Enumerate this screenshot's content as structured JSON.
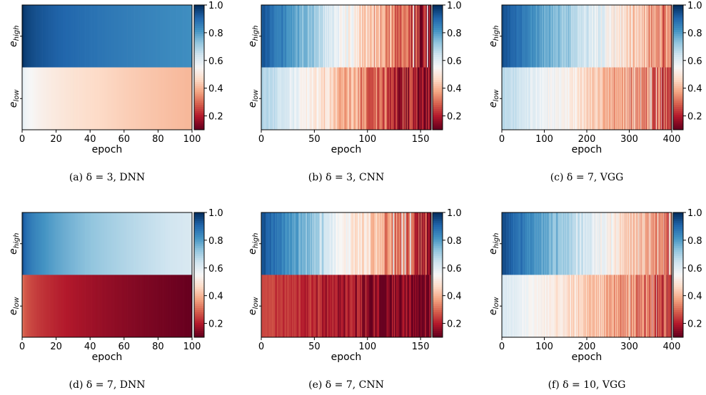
{
  "colorbar": {
    "min": 0.1,
    "max": 1.0,
    "ticks": [
      0.2,
      0.4,
      0.6,
      0.8,
      1.0
    ],
    "colormap": "RdBu"
  },
  "chart_data": [
    {
      "type": "heatmap",
      "caption": "(a) δ = 3, DNN",
      "xlabel": "epoch",
      "rows": [
        "e_high",
        "e_low"
      ],
      "xlim": [
        0,
        100
      ],
      "xticks": [
        0,
        20,
        40,
        60,
        80,
        100
      ],
      "epochs": 100,
      "profile": {
        "high": {
          "start": 1.0,
          "end": 0.83,
          "mode": "smooth"
        },
        "low": {
          "start": 0.6,
          "end": 0.4,
          "mode": "smooth"
        }
      }
    },
    {
      "type": "heatmap",
      "caption": "(b) δ = 3, CNN",
      "xlabel": "epoch",
      "rows": [
        "e_high",
        "e_low"
      ],
      "xlim": [
        0,
        160
      ],
      "xticks": [
        0,
        50,
        100,
        150
      ],
      "epochs": 160,
      "profile": {
        "high": {
          "start": 0.95,
          "end": 0.15,
          "mode": "noisy"
        },
        "low": {
          "start": 0.7,
          "end": 0.1,
          "mode": "noisy"
        }
      }
    },
    {
      "type": "heatmap",
      "caption": "(c) δ = 7, VGG",
      "xlabel": "epoch",
      "rows": [
        "e_high",
        "e_low"
      ],
      "xlim": [
        0,
        400
      ],
      "xticks": [
        0,
        100,
        200,
        300,
        400
      ],
      "epochs": 400,
      "profile": {
        "high": {
          "start": 0.95,
          "end": 0.3,
          "mode": "noisy"
        },
        "low": {
          "start": 0.68,
          "end": 0.25,
          "mode": "noisy"
        }
      }
    },
    {
      "type": "heatmap",
      "caption": "(d) δ = 7, DNN",
      "xlabel": "epoch",
      "rows": [
        "e_high",
        "e_low"
      ],
      "xlim": [
        0,
        100
      ],
      "xticks": [
        0,
        20,
        40,
        60,
        80,
        100
      ],
      "epochs": 100,
      "profile": {
        "high": {
          "start": 0.95,
          "end": 0.62,
          "mode": "smooth"
        },
        "low": {
          "start": 0.3,
          "end": 0.1,
          "mode": "smooth"
        }
      }
    },
    {
      "type": "heatmap",
      "caption": "(e) δ = 7, CNN",
      "xlabel": "epoch",
      "rows": [
        "e_high",
        "e_low"
      ],
      "xlim": [
        0,
        160
      ],
      "xticks": [
        0,
        50,
        100,
        150
      ],
      "epochs": 160,
      "profile": {
        "high": {
          "start": 0.95,
          "end": 0.15,
          "mode": "noisy"
        },
        "low": {
          "start": 0.25,
          "end": 0.1,
          "mode": "noisy"
        }
      }
    },
    {
      "type": "heatmap",
      "caption": "(f) δ = 10, VGG",
      "xlabel": "epoch",
      "rows": [
        "e_high",
        "e_low"
      ],
      "xlim": [
        0,
        400
      ],
      "xticks": [
        0,
        100,
        200,
        300,
        400
      ],
      "epochs": 400,
      "profile": {
        "high": {
          "start": 0.95,
          "end": 0.3,
          "mode": "noisy"
        },
        "low": {
          "start": 0.62,
          "end": 0.25,
          "mode": "noisy"
        }
      }
    }
  ]
}
